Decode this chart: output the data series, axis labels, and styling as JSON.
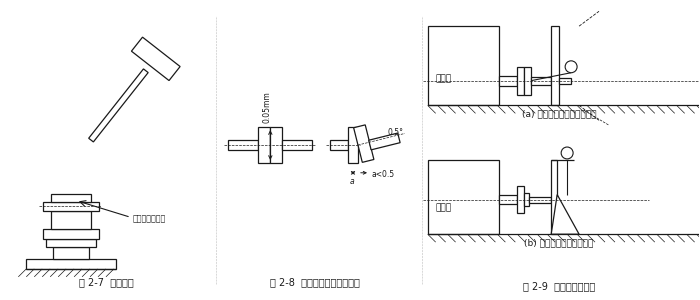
{
  "bg_color": "#ffffff",
  "fig_width": 7.0,
  "fig_height": 3.0,
  "dpi": 100,
  "caption1": "图 2-7  注意事项",
  "caption2": "图 2-8  联轴器之间的安装精度",
  "caption3": "图 2-9  安装精度的检查",
  "label_copper": "此处应垫一铜棒",
  "label_05mm": "0.05mm",
  "label_05deg": "0.5°",
  "label_a05": "a<0.5",
  "label_a": "a",
  "label_yuandongji_a": "原动机",
  "label_yuandongji_b": "原动机",
  "label_sub_a": "(a) 用百分表检查联轴器端面",
  "label_sub_b": "(b) 用百分表检查支座端面",
  "line_color": "#1a1a1a",
  "face_color": "#f5f5f5",
  "white": "#ffffff"
}
